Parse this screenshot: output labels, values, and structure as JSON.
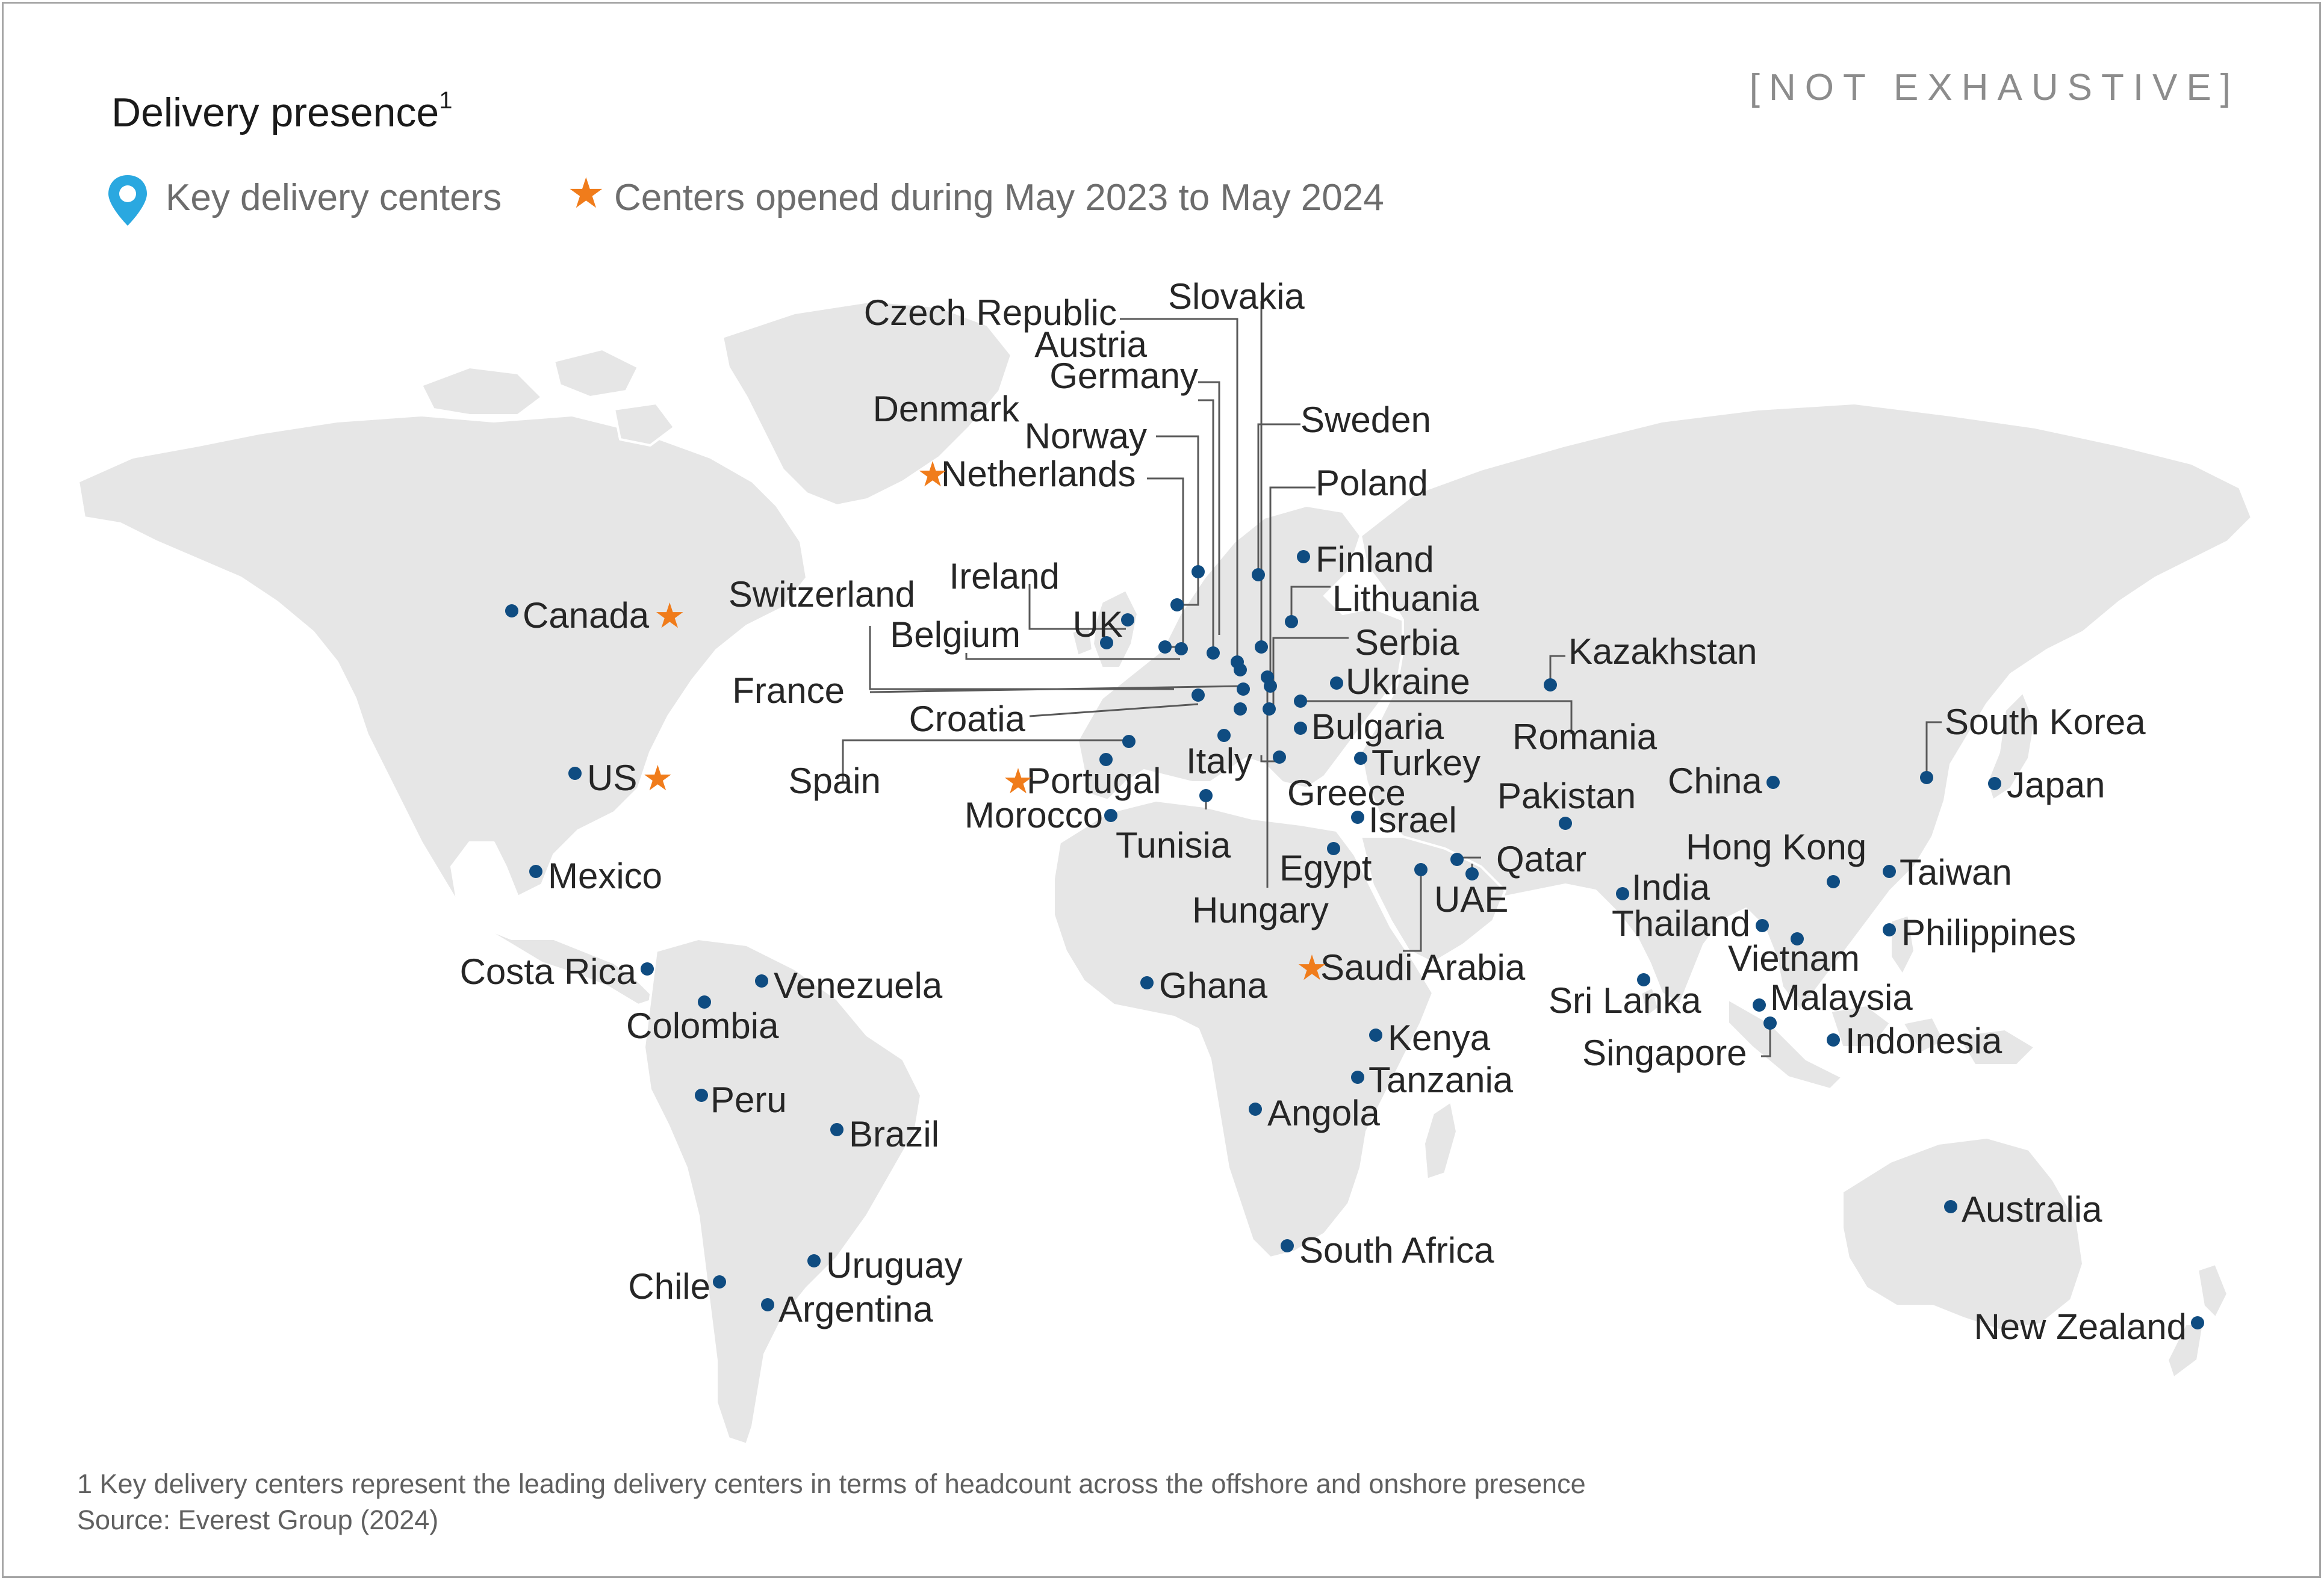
{
  "header": {
    "title": "Delivery presence",
    "title_footnote_marker": "1",
    "disclaimer": "[NOT EXHAUSTIVE]"
  },
  "legend": {
    "key_centers": "Key delivery centers",
    "new_centers": "Centers opened during May 2023 to May 2024",
    "key_icon": "location-pin-icon",
    "new_icon": "star-icon"
  },
  "colors": {
    "land": "#e6e6e6",
    "marker": "#0f4c81",
    "new_center_star": "#f07c1b",
    "pin": "#2aa8e0"
  },
  "locations": [
    {
      "name": "Canada",
      "new": true
    },
    {
      "name": "US",
      "new": true
    },
    {
      "name": "Mexico",
      "new": false
    },
    {
      "name": "Costa Rica",
      "new": false
    },
    {
      "name": "Colombia",
      "new": false
    },
    {
      "name": "Venezuela",
      "new": false
    },
    {
      "name": "Peru",
      "new": false
    },
    {
      "name": "Brazil",
      "new": false
    },
    {
      "name": "Chile",
      "new": false
    },
    {
      "name": "Uruguay",
      "new": false
    },
    {
      "name": "Argentina",
      "new": false
    },
    {
      "name": "Ireland",
      "new": false
    },
    {
      "name": "UK",
      "new": false
    },
    {
      "name": "Belgium",
      "new": false
    },
    {
      "name": "Switzerland",
      "new": false
    },
    {
      "name": "France",
      "new": false
    },
    {
      "name": "Croatia",
      "new": false
    },
    {
      "name": "Spain",
      "new": false
    },
    {
      "name": "Portugal",
      "new": true
    },
    {
      "name": "Morocco",
      "new": false
    },
    {
      "name": "Tunisia",
      "new": false
    },
    {
      "name": "Italy",
      "new": false
    },
    {
      "name": "Netherlands",
      "new": true
    },
    {
      "name": "Norway",
      "new": false
    },
    {
      "name": "Denmark",
      "new": false
    },
    {
      "name": "Germany",
      "new": false
    },
    {
      "name": "Austria",
      "new": false
    },
    {
      "name": "Czech Republic",
      "new": false
    },
    {
      "name": "Slovakia",
      "new": false
    },
    {
      "name": "Sweden",
      "new": false
    },
    {
      "name": "Poland",
      "new": false
    },
    {
      "name": "Finland",
      "new": false
    },
    {
      "name": "Lithuania",
      "new": false
    },
    {
      "name": "Serbia",
      "new": false
    },
    {
      "name": "Ukraine",
      "new": false
    },
    {
      "name": "Romania",
      "new": false
    },
    {
      "name": "Bulgaria",
      "new": false
    },
    {
      "name": "Turkey",
      "new": false
    },
    {
      "name": "Greece",
      "new": false
    },
    {
      "name": "Hungary",
      "new": false
    },
    {
      "name": "Israel",
      "new": false
    },
    {
      "name": "Egypt",
      "new": false
    },
    {
      "name": "Qatar",
      "new": false
    },
    {
      "name": "UAE",
      "new": false
    },
    {
      "name": "Saudi Arabia",
      "new": true
    },
    {
      "name": "Kazakhstan",
      "new": false
    },
    {
      "name": "Pakistan",
      "new": false
    },
    {
      "name": "India",
      "new": false
    },
    {
      "name": "Sri Lanka",
      "new": false
    },
    {
      "name": "China",
      "new": false
    },
    {
      "name": "Hong Kong",
      "new": false
    },
    {
      "name": "Thailand",
      "new": false
    },
    {
      "name": "Vietnam",
      "new": false
    },
    {
      "name": "Malaysia",
      "new": false
    },
    {
      "name": "Singapore",
      "new": false
    },
    {
      "name": "Indonesia",
      "new": false
    },
    {
      "name": "Philippines",
      "new": false
    },
    {
      "name": "Taiwan",
      "new": false
    },
    {
      "name": "South Korea",
      "new": false
    },
    {
      "name": "Japan",
      "new": false
    },
    {
      "name": "Australia",
      "new": false
    },
    {
      "name": "New Zealand",
      "new": false
    },
    {
      "name": "Ghana",
      "new": false
    },
    {
      "name": "Kenya",
      "new": false
    },
    {
      "name": "Tanzania",
      "new": false
    },
    {
      "name": "Angola",
      "new": false
    },
    {
      "name": "South Africa",
      "new": false
    }
  ],
  "footer": {
    "footnote": "1 Key delivery centers represent the leading delivery centers in terms of headcount across the offshore and onshore presence",
    "source": "Source: Everest Group (2024)"
  }
}
